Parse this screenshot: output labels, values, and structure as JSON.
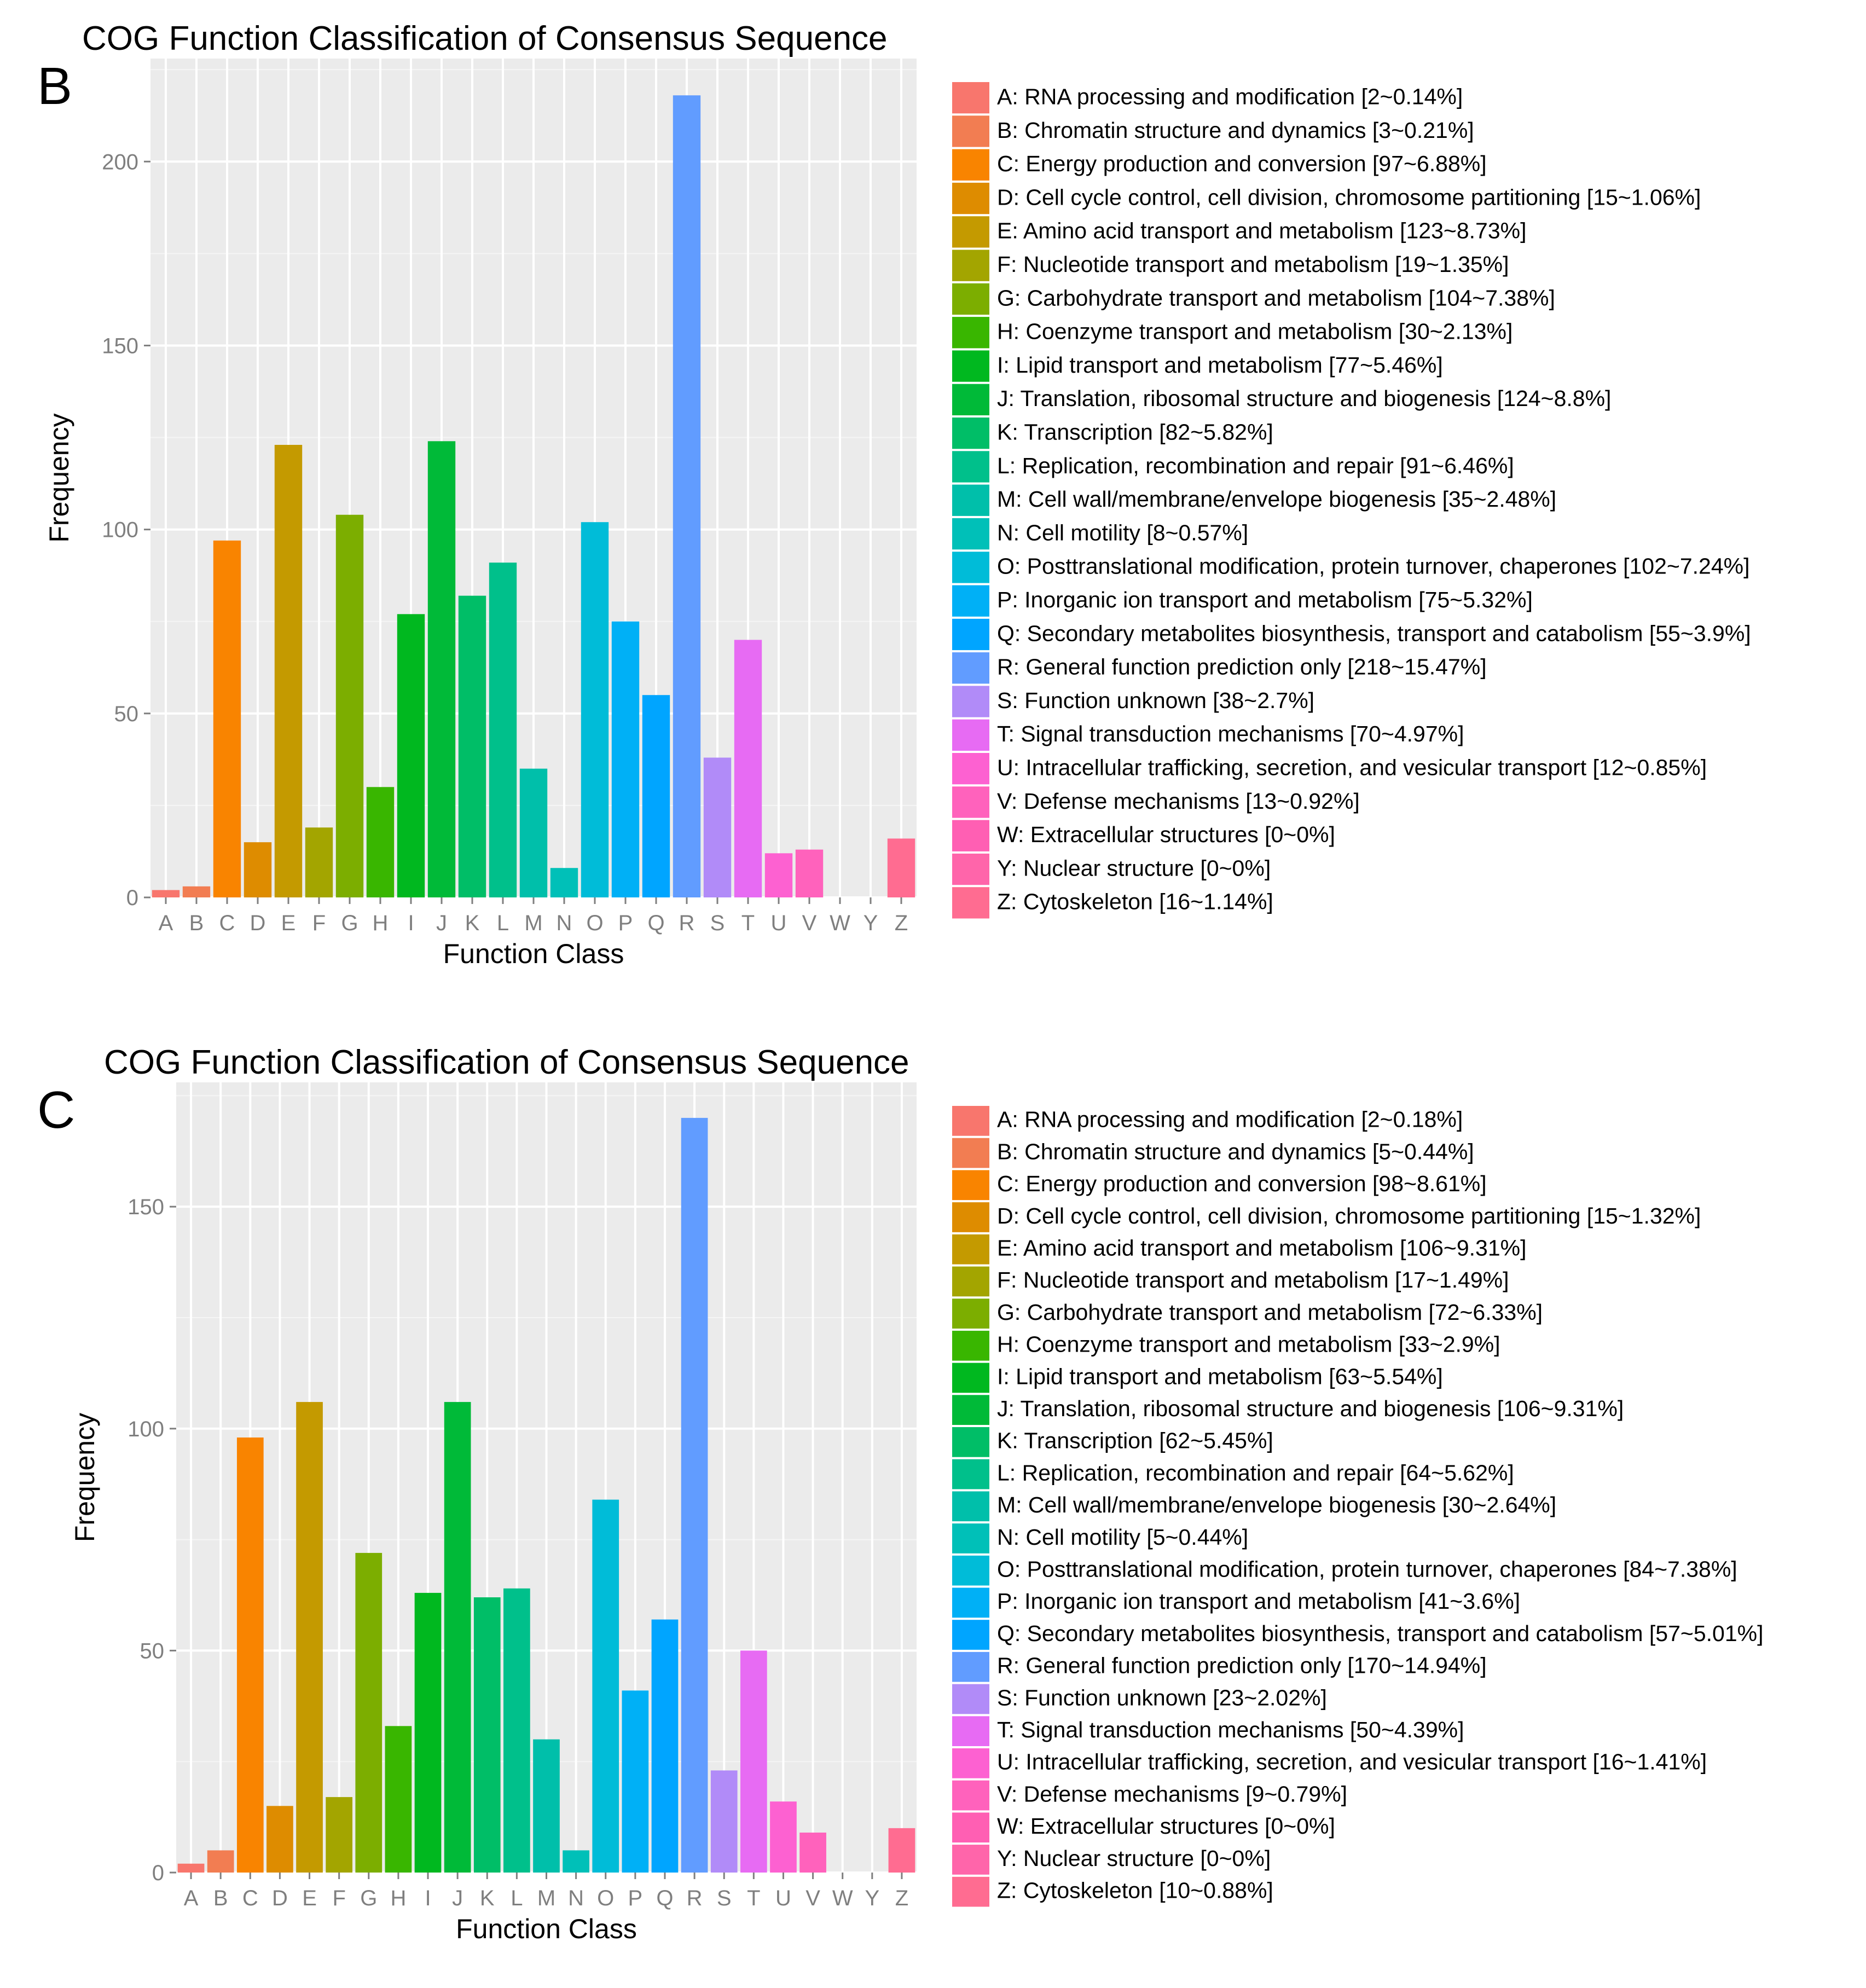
{
  "charts": [
    {
      "panel": "B",
      "chart_data": {
        "type": "bar",
        "title": "COG Function Classification of Consensus Sequence",
        "xlabel": "Function Class",
        "ylabel": "Frequency",
        "ylim": [
          0,
          228
        ],
        "yticks": [
          0,
          50,
          100,
          150,
          200
        ],
        "grid": true,
        "legend_position": "right",
        "categories": [
          "A",
          "B",
          "C",
          "D",
          "E",
          "F",
          "G",
          "H",
          "I",
          "J",
          "K",
          "L",
          "M",
          "N",
          "O",
          "P",
          "Q",
          "R",
          "S",
          "T",
          "U",
          "V",
          "W",
          "Y",
          "Z"
        ],
        "values": [
          2,
          3,
          97,
          15,
          123,
          19,
          104,
          30,
          77,
          124,
          82,
          91,
          35,
          8,
          102,
          75,
          55,
          218,
          38,
          70,
          12,
          13,
          0,
          0,
          16
        ],
        "colors": [
          "#F8766D",
          "#F27D52",
          "#F98400",
          "#DE8C00",
          "#C49A00",
          "#A3A500",
          "#7CAE00",
          "#39B600",
          "#00B81F",
          "#00BA38",
          "#00BE67",
          "#00C08B",
          "#00BFAA",
          "#00C0B8",
          "#00BCD8",
          "#00B0F6",
          "#00A5FF",
          "#619CFF",
          "#B18BF8",
          "#E76BF3",
          "#FD61D1",
          "#FF62BC",
          "#FF5FB3",
          "#FF65AA",
          "#FF6C91"
        ],
        "legend": [
          "A: RNA processing and modification [2~0.14%]",
          "B: Chromatin structure and dynamics [3~0.21%]",
          "C: Energy production and conversion [97~6.88%]",
          "D: Cell cycle control, cell division, chromosome partitioning [15~1.06%]",
          "E: Amino acid transport and metabolism [123~8.73%]",
          "F: Nucleotide transport and metabolism [19~1.35%]",
          "G: Carbohydrate transport and metabolism [104~7.38%]",
          "H: Coenzyme transport and metabolism [30~2.13%]",
          "I: Lipid transport and metabolism [77~5.46%]",
          "J: Translation, ribosomal structure and biogenesis [124~8.8%]",
          "K: Transcription [82~5.82%]",
          "L: Replication, recombination and repair [91~6.46%]",
          "M: Cell wall/membrane/envelope biogenesis [35~2.48%]",
          "N: Cell motility [8~0.57%]",
          "O: Posttranslational modification, protein turnover, chaperones [102~7.24%]",
          "P: Inorganic ion transport and metabolism [75~5.32%]",
          "Q: Secondary metabolites biosynthesis, transport and catabolism [55~3.9%]",
          "R: General function prediction only [218~15.47%]",
          "S: Function unknown [38~2.7%]",
          "T: Signal transduction mechanisms [70~4.97%]",
          "U: Intracellular trafficking, secretion, and vesicular transport [12~0.85%]",
          "V: Defense mechanisms [13~0.92%]",
          "W: Extracellular structures [0~0%]",
          "Y: Nuclear structure [0~0%]",
          "Z: Cytoskeleton [16~1.14%]"
        ]
      }
    },
    {
      "panel": "C",
      "chart_data": {
        "type": "bar",
        "title": "COG Function Classification of Consensus Sequence",
        "xlabel": "Function Class",
        "ylabel": "Frequency",
        "ylim": [
          0,
          178
        ],
        "yticks": [
          0,
          50,
          100,
          150
        ],
        "grid": true,
        "legend_position": "right",
        "categories": [
          "A",
          "B",
          "C",
          "D",
          "E",
          "F",
          "G",
          "H",
          "I",
          "J",
          "K",
          "L",
          "M",
          "N",
          "O",
          "P",
          "Q",
          "R",
          "S",
          "T",
          "U",
          "V",
          "W",
          "Y",
          "Z"
        ],
        "values": [
          2,
          5,
          98,
          15,
          106,
          17,
          72,
          33,
          63,
          106,
          62,
          64,
          30,
          5,
          84,
          41,
          57,
          170,
          23,
          50,
          16,
          9,
          0,
          0,
          10
        ],
        "colors": [
          "#F8766D",
          "#F27D52",
          "#F98400",
          "#DE8C00",
          "#C49A00",
          "#A3A500",
          "#7CAE00",
          "#39B600",
          "#00B81F",
          "#00BA38",
          "#00BE67",
          "#00C08B",
          "#00BFAA",
          "#00C0B8",
          "#00BCD8",
          "#00B0F6",
          "#00A5FF",
          "#619CFF",
          "#B18BF8",
          "#E76BF3",
          "#FD61D1",
          "#FF62BC",
          "#FF5FB3",
          "#FF65AA",
          "#FF6C91"
        ],
        "legend": [
          "A: RNA processing and modification [2~0.18%]",
          "B: Chromatin structure and dynamics [5~0.44%]",
          "C: Energy production and conversion [98~8.61%]",
          "D: Cell cycle control, cell division, chromosome partitioning [15~1.32%]",
          "E: Amino acid transport and metabolism [106~9.31%]",
          "F: Nucleotide transport and metabolism [17~1.49%]",
          "G: Carbohydrate transport and metabolism [72~6.33%]",
          "H: Coenzyme transport and metabolism [33~2.9%]",
          "I: Lipid transport and metabolism [63~5.54%]",
          "J: Translation, ribosomal structure and biogenesis [106~9.31%]",
          "K: Transcription [62~5.45%]",
          "L: Replication, recombination and repair [64~5.62%]",
          "M: Cell wall/membrane/envelope biogenesis [30~2.64%]",
          "N: Cell motility [5~0.44%]",
          "O: Posttranslational modification, protein turnover, chaperones [84~7.38%]",
          "P: Inorganic ion transport and metabolism [41~3.6%]",
          "Q: Secondary metabolites biosynthesis, transport and catabolism [57~5.01%]",
          "R: General function prediction only [170~14.94%]",
          "S: Function unknown [23~2.02%]",
          "T: Signal transduction mechanisms [50~4.39%]",
          "U: Intracellular trafficking, secretion, and vesicular transport [16~1.41%]",
          "V: Defense mechanisms [9~0.79%]",
          "W: Extracellular structures [0~0%]",
          "Y: Nuclear structure [0~0%]",
          "Z: Cytoskeleton [10~0.88%]"
        ]
      }
    }
  ]
}
